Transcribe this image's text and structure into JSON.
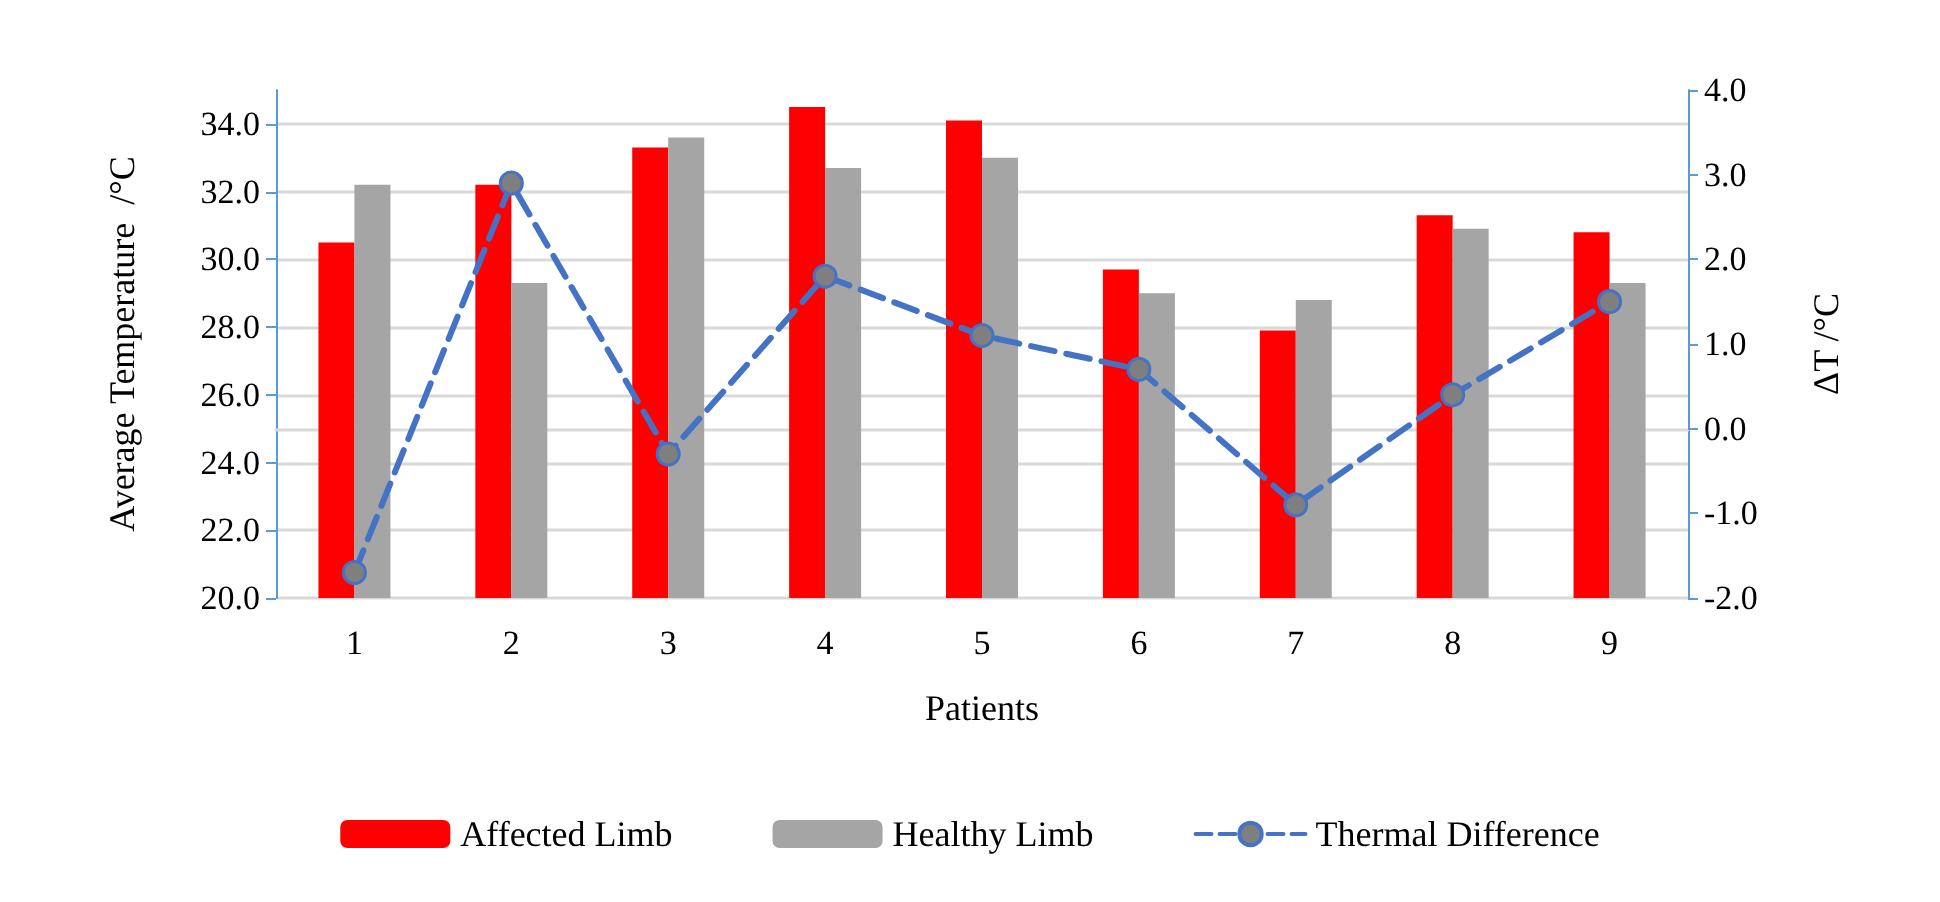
{
  "chart_data": {
    "type": "bar",
    "xlabel": "Patients",
    "ylabel": "Average Temperature  /°C",
    "y2label": "ΔT /°C",
    "categories": [
      "1",
      "2",
      "3",
      "4",
      "5",
      "6",
      "7",
      "8",
      "9"
    ],
    "series": [
      {
        "name": "Affected Limb",
        "color": "#ff0000",
        "values": [
          30.5,
          32.2,
          33.3,
          34.5,
          34.1,
          29.7,
          27.9,
          31.3,
          30.8
        ]
      },
      {
        "name": "Healthy Limb",
        "color": "#a5a5a5",
        "values": [
          32.2,
          29.3,
          33.6,
          32.7,
          33.0,
          29.0,
          28.8,
          30.9,
          29.3
        ]
      },
      {
        "name": "Thermal Difference",
        "type": "line",
        "axis": "y2",
        "color": "#4472c4",
        "line_style": "dashed",
        "marker": "circle",
        "values": [
          -1.7,
          2.9,
          -0.3,
          1.8,
          1.1,
          0.7,
          -0.9,
          0.4,
          1.5
        ]
      }
    ],
    "ylim": [
      20,
      35
    ],
    "yticks": [
      {
        "value": 20,
        "label": "20.0"
      },
      {
        "value": 22,
        "label": "22.0"
      },
      {
        "value": 24,
        "label": "24.0"
      },
      {
        "value": 26,
        "label": "26.0"
      },
      {
        "value": 28,
        "label": "28.0"
      },
      {
        "value": 30,
        "label": "30.0"
      },
      {
        "value": 32,
        "label": "32.0"
      },
      {
        "value": 34,
        "label": "34.0"
      }
    ],
    "y2lim": [
      -2,
      4
    ],
    "y2ticks": [
      {
        "value": -2,
        "label": "-2.0"
      },
      {
        "value": -1,
        "label": "-1.0"
      },
      {
        "value": 0,
        "label": "0.0"
      },
      {
        "value": 1,
        "label": "1.0"
      },
      {
        "value": 2,
        "label": "2.0"
      },
      {
        "value": 3,
        "label": "3.0"
      },
      {
        "value": 4,
        "label": "4.0"
      }
    ],
    "grid": "y",
    "legend": "bottom"
  }
}
